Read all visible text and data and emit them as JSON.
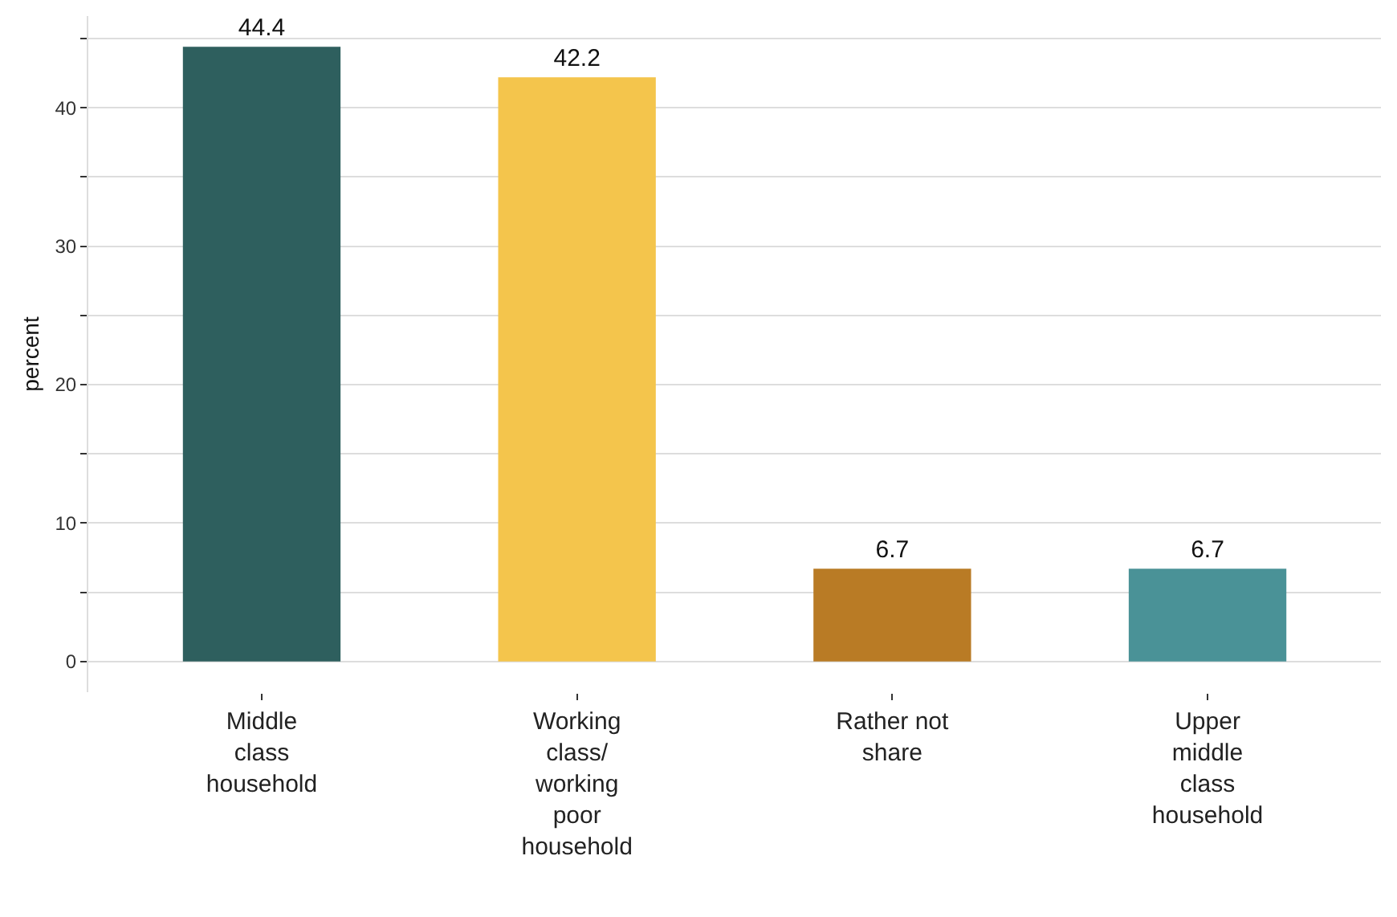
{
  "chart_data": {
    "type": "bar",
    "ylabel": "percent",
    "categories": [
      "Middle\nclass\nhousehold",
      "Working\nclass/\nworking\npoor\nhousehold",
      "Rather not\nshare",
      "Upper\nmiddle\nclass\nhousehold"
    ],
    "values": [
      44.4,
      42.2,
      6.7,
      6.7
    ],
    "colors": [
      "#2e5f5e",
      "#f4c54c",
      "#b97b25",
      "#4a9297"
    ],
    "ylim": [
      -2.22,
      46.62
    ],
    "yticks": [
      0,
      {
        "value": 5,
        "label": null
      },
      10,
      {
        "value": 15,
        "label": null
      },
      20,
      {
        "value": 25,
        "label": null
      },
      30,
      {
        "value": 35,
        "label": null
      },
      40,
      {
        "value": 45,
        "label": null
      }
    ],
    "grid": "y",
    "data_labels": true
  }
}
